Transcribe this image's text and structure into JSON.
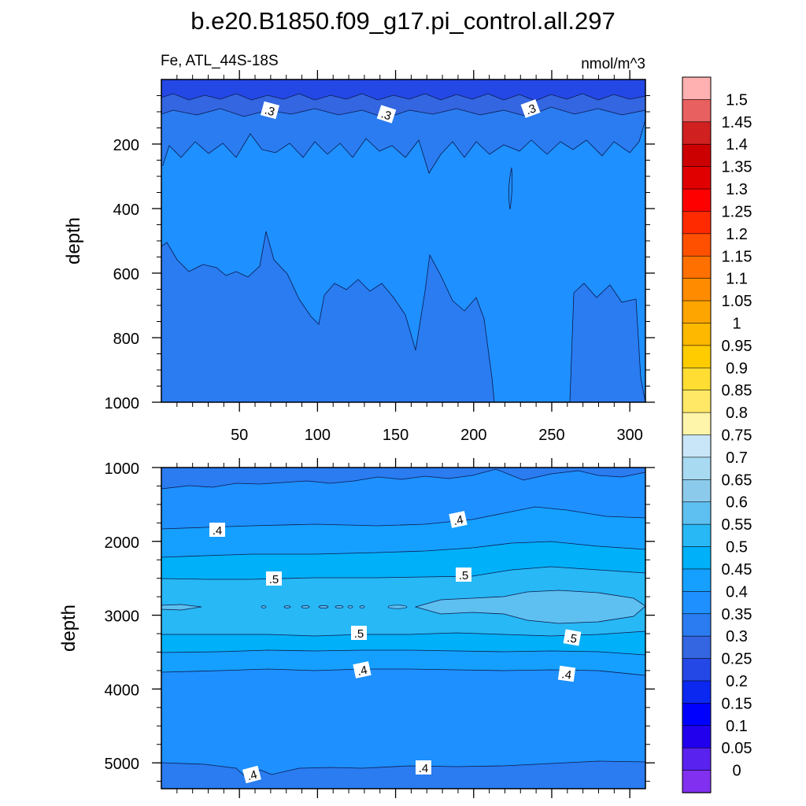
{
  "chart_data": {
    "type": "contour",
    "title": "b.e20.B1850.f09_g17.pi_control.all.297",
    "variable_label": "Fe, ATL_44S-18S",
    "units_label": "nmol/m^3",
    "colorbar": {
      "levels": [
        "0",
        "0.05",
        "0.1",
        "0.15",
        "0.2",
        "0.25",
        "0.3",
        "0.35",
        "0.4",
        "0.45",
        "0.5",
        "0.55",
        "0.6",
        "0.65",
        "0.7",
        "0.75",
        "0.8",
        "0.85",
        "0.9",
        "0.95",
        "1",
        "1.05",
        "1.1",
        "1.15",
        "1.2",
        "1.25",
        "1.3",
        "1.35",
        "1.4",
        "1.45",
        "1.5"
      ],
      "colors": [
        "#ffb0b0",
        "#e86060",
        "#d02020",
        "#cc0000",
        "#e00000",
        "#ff0000",
        "#ff2a00",
        "#ff5000",
        "#ff7000",
        "#ff8c00",
        "#ffa500",
        "#ffb800",
        "#ffcc00",
        "#ffdd33",
        "#ffe866",
        "#fff5aa",
        "#c8e6f8",
        "#a8daf2",
        "#8ccaeb",
        "#5ec0f0",
        "#27b8f5",
        "#00b0f8",
        "#15a0ff",
        "#1e90ff",
        "#2a7cf0",
        "#3366e0",
        "#2448e6",
        "#0a28f0",
        "#0000ff",
        "#2200ee",
        "#5a22ee",
        "#8030ee"
      ]
    },
    "panels": [
      {
        "name": "upper",
        "ylabel": "depth",
        "ylim": [
          0,
          1000
        ],
        "yticks": [
          "200",
          "400",
          "600",
          "800",
          "1000"
        ],
        "xlim": [
          0,
          310
        ],
        "xticks": [
          "50",
          "100",
          "150",
          "200",
          "250",
          "300"
        ],
        "fill_colors": [
          "#2448e6",
          "#3366e0",
          "#2a7cf0",
          "#1e90ff"
        ],
        "contour_labels": [
          ".3",
          ".3",
          ".3"
        ]
      },
      {
        "name": "lower",
        "ylabel": "depth",
        "ylim": [
          1000,
          5350
        ],
        "yticks": [
          "1000",
          "2000",
          "3000",
          "4000",
          "5000"
        ],
        "xlim": [
          0,
          310
        ],
        "fill_colors": [
          "#2a7cf0",
          "#1e90ff",
          "#15a0ff",
          "#00b0f8",
          "#27b8f5",
          "#5ec0f0"
        ],
        "contour_labels": [
          ".4",
          ".4",
          ".5",
          ".5",
          ".5",
          ".5",
          ".4",
          ".4",
          ".4",
          ".4"
        ]
      }
    ]
  }
}
